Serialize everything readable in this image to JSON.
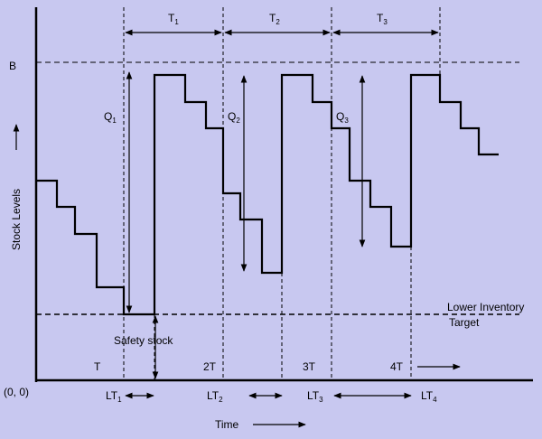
{
  "y_axis_label": "Stock Levels",
  "x_axis_label": "Time",
  "origin_label": "(0, 0)",
  "b_label": "B",
  "lower_target_line1": "Lower Inventory",
  "lower_target_line2": "Target",
  "safety_stock_label": "Safety stock",
  "period_ticks": [
    "T",
    "2T",
    "3T",
    "4T"
  ],
  "cycle_labels": [
    {
      "main": "T",
      "sub": "1"
    },
    {
      "main": "T",
      "sub": "2"
    },
    {
      "main": "T",
      "sub": "3"
    }
  ],
  "order_labels": [
    {
      "main": "Q",
      "sub": "1"
    },
    {
      "main": "Q",
      "sub": "2"
    },
    {
      "main": "Q",
      "sub": "3"
    }
  ],
  "lead_time_labels": [
    {
      "main": "LT",
      "sub": "1"
    },
    {
      "main": "LT",
      "sub": "2"
    },
    {
      "main": "LT",
      "sub": "3"
    },
    {
      "main": "LT",
      "sub": "4"
    }
  ],
  "colors": {
    "background": "#c8c8f0",
    "ink": "#000000"
  }
}
